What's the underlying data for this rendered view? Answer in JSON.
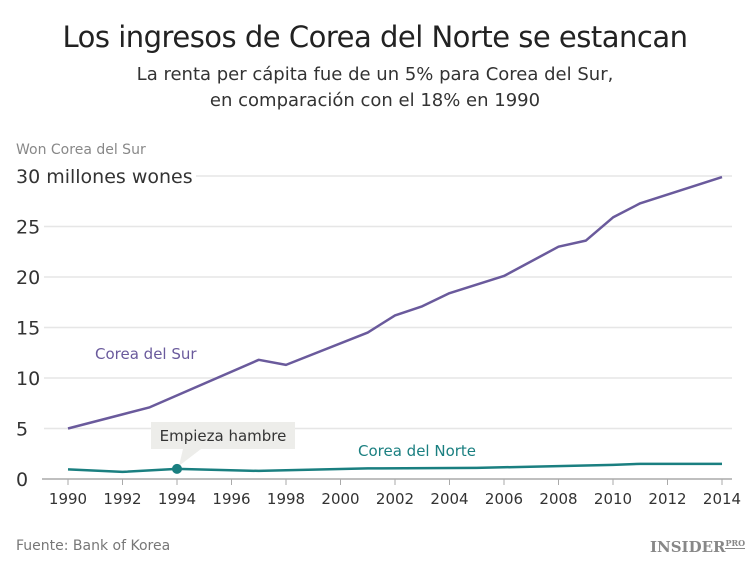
{
  "title": "Los ingresos de Corea del Norte se estancan",
  "subtitle_1": "La renta per cápita fue de un 5% para Corea del Sur,",
  "subtitle_2": "en comparación con el 18% en 1990",
  "source": "Fuente: Bank of Korea",
  "logo": "INSIDER",
  "logo_sup": "PRO",
  "chart_data": {
    "type": "line",
    "ylabel": "Won Corea del Sur",
    "ylim": [
      0,
      30
    ],
    "xlim": [
      1990,
      2014
    ],
    "yticks": [
      "0",
      "5",
      "10",
      "15",
      "20",
      "25",
      "30 millones wones"
    ],
    "ytick_values": [
      0,
      5,
      10,
      15,
      20,
      25,
      30
    ],
    "xticks": [
      1990,
      1992,
      1994,
      1996,
      1998,
      2000,
      2002,
      2004,
      2006,
      2008,
      2010,
      2012,
      2014
    ],
    "grid": true,
    "series": [
      {
        "name": "Corea del Sur",
        "color": "#6a5a9c",
        "x": [
          1990,
          1992,
          1993,
          1997,
          1998,
          2001,
          2002,
          2003,
          2004,
          2006,
          2008,
          2009,
          2010,
          2011,
          2014
        ],
        "y": [
          5.0,
          6.4,
          7.1,
          11.8,
          11.3,
          14.5,
          16.2,
          17.1,
          18.4,
          20.1,
          23.0,
          23.6,
          25.9,
          27.3,
          29.9
        ]
      },
      {
        "name": "Corea del Norte",
        "color": "#1a7f80",
        "x": [
          1990,
          1992,
          1994,
          1997,
          2001,
          2005,
          2010,
          2011,
          2014
        ],
        "y": [
          0.95,
          0.7,
          1.0,
          0.8,
          1.05,
          1.1,
          1.4,
          1.5,
          1.5
        ]
      }
    ],
    "annotation": {
      "text": "Empieza hambre",
      "x": 1994,
      "y": 1.0
    }
  }
}
